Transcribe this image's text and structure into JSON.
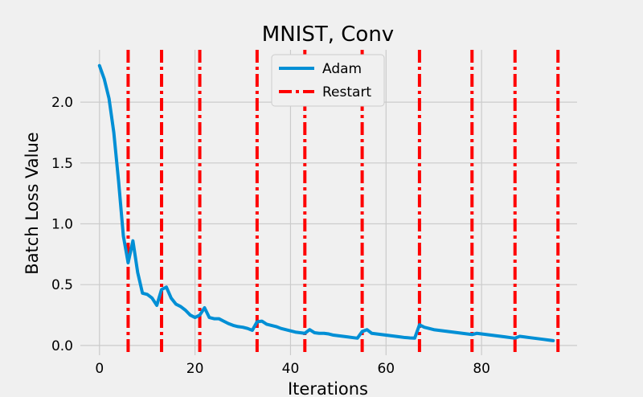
{
  "chart_data": {
    "type": "line",
    "title": "MNIST, Conv",
    "xlabel": "Iterations",
    "ylabel": "Batch Loss Value",
    "xlim": [
      -4,
      100
    ],
    "ylim": [
      -0.08,
      2.43
    ],
    "xticks": [
      0,
      20,
      40,
      60,
      80
    ],
    "yticks": [
      0.0,
      0.5,
      1.0,
      1.5,
      2.0
    ],
    "xtick_labels": [
      "0",
      "20",
      "40",
      "60",
      "80"
    ],
    "ytick_labels": [
      "0.0",
      "0.5",
      "1.0",
      "1.5",
      "2.0"
    ],
    "grid": true,
    "legend_position": "top-center",
    "series": [
      {
        "name": "Adam",
        "color": "#008fd5",
        "x": [
          0,
          1,
          2,
          3,
          4,
          5,
          6,
          7,
          8,
          9,
          10,
          11,
          12,
          13,
          14,
          15,
          16,
          17,
          18,
          19,
          20,
          21,
          22,
          23,
          24,
          25,
          26,
          27,
          28,
          29,
          30,
          31,
          32,
          33,
          34,
          35,
          36,
          37,
          38,
          39,
          40,
          41,
          42,
          43,
          44,
          45,
          46,
          47,
          48,
          49,
          50,
          51,
          52,
          53,
          54,
          55,
          56,
          57,
          58,
          59,
          60,
          61,
          62,
          63,
          64,
          65,
          66,
          67,
          68,
          69,
          70,
          71,
          72,
          73,
          74,
          75,
          76,
          77,
          78,
          79,
          80,
          81,
          82,
          83,
          84,
          85,
          86,
          87,
          88,
          89,
          90,
          91,
          92,
          93,
          94,
          95
        ],
        "y": [
          2.3,
          2.19,
          2.03,
          1.75,
          1.35,
          0.9,
          0.68,
          0.86,
          0.6,
          0.43,
          0.42,
          0.39,
          0.33,
          0.46,
          0.48,
          0.39,
          0.34,
          0.32,
          0.29,
          0.25,
          0.23,
          0.25,
          0.31,
          0.23,
          0.22,
          0.22,
          0.2,
          0.18,
          0.165,
          0.155,
          0.15,
          0.14,
          0.125,
          0.195,
          0.2,
          0.175,
          0.165,
          0.155,
          0.14,
          0.13,
          0.12,
          0.11,
          0.105,
          0.1,
          0.13,
          0.105,
          0.1,
          0.1,
          0.095,
          0.085,
          0.08,
          0.075,
          0.07,
          0.065,
          0.06,
          0.115,
          0.13,
          0.1,
          0.095,
          0.09,
          0.085,
          0.08,
          0.075,
          0.07,
          0.065,
          0.062,
          0.06,
          0.17,
          0.15,
          0.14,
          0.13,
          0.125,
          0.12,
          0.115,
          0.11,
          0.105,
          0.1,
          0.095,
          0.09,
          0.1,
          0.095,
          0.09,
          0.085,
          0.08,
          0.075,
          0.07,
          0.065,
          0.06,
          0.075,
          0.07,
          0.065,
          0.06,
          0.055,
          0.05,
          0.045,
          0.04
        ]
      },
      {
        "name": "Restart",
        "color": "#ff0000",
        "style": "dashdot",
        "x": [
          6,
          13,
          21,
          33,
          43,
          55,
          67,
          78,
          87,
          96
        ]
      }
    ]
  }
}
